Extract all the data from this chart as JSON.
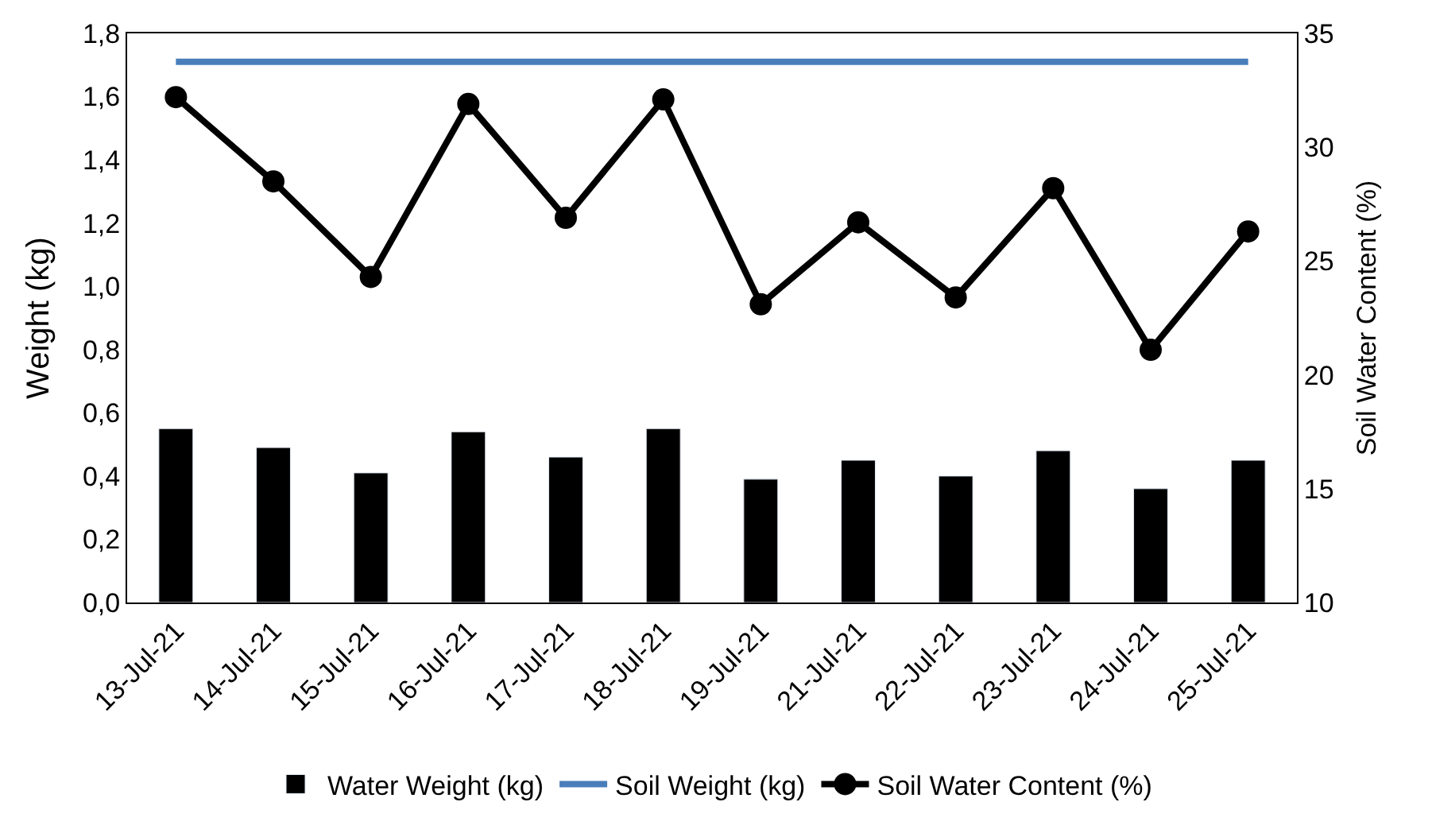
{
  "chart_data": {
    "type": "bar",
    "ylabel": "Weight (kg)",
    "y2label": "Soil Water Content (%)",
    "categories": [
      "13-Jul-21",
      "14-Jul-21",
      "15-Jul-21",
      "16-Jul-21",
      "17-Jul-21",
      "18-Jul-21",
      "19-Jul-21",
      "21-Jul-21",
      "22-Jul-21",
      "23-Jul-21",
      "24-Jul-21",
      "25-Jul-21"
    ],
    "series": [
      {
        "name": "Water Weight (kg)",
        "color": "#000000",
        "values": [
          0.55,
          0.49,
          0.41,
          0.54,
          0.46,
          0.55,
          0.39,
          0.45,
          0.4,
          0.48,
          0.36,
          0.45
        ]
      },
      {
        "name": "Soil Weight (kg)",
        "type": "line",
        "color": "#4a7ebb",
        "marker": "none",
        "values": [
          1.71,
          1.71,
          1.71,
          1.71,
          1.71,
          1.71,
          1.71,
          1.71,
          1.71,
          1.71,
          1.71,
          1.71
        ]
      },
      {
        "name": "Soil Water Content (%)",
        "type": "line",
        "axis": "y2",
        "color": "#000000",
        "marker": "circle",
        "values": [
          32.2,
          28.5,
          24.3,
          31.9,
          26.9,
          32.1,
          23.1,
          26.7,
          23.4,
          28.2,
          21.1,
          26.3
        ]
      }
    ],
    "ylim": [
      0,
      1.8
    ],
    "yticks": [
      {
        "value": 0,
        "label": "0,0"
      },
      {
        "value": 0.2,
        "label": "0,2"
      },
      {
        "value": 0.4,
        "label": "0,4"
      },
      {
        "value": 0.6,
        "label": "0,6"
      },
      {
        "value": 0.8,
        "label": "0,8"
      },
      {
        "value": 1.0,
        "label": "1,0"
      },
      {
        "value": 1.2,
        "label": "1,2"
      },
      {
        "value": 1.4,
        "label": "1,4"
      },
      {
        "value": 1.6,
        "label": "1,6"
      },
      {
        "value": 1.8,
        "label": "1,8"
      }
    ],
    "y2lim": [
      10,
      35
    ],
    "y2ticks": [
      10,
      15,
      20,
      25,
      30,
      35
    ],
    "legend": "bottom"
  }
}
